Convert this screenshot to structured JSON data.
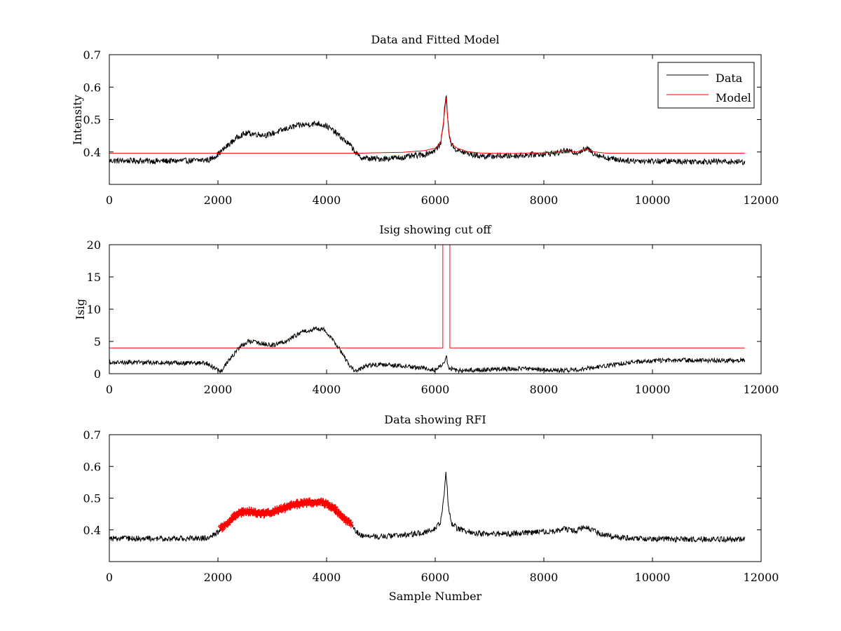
{
  "chart_data": [
    {
      "type": "line",
      "title": "Data and Fitted Model",
      "xlabel": "",
      "ylabel": "Intensity",
      "xlim": [
        0,
        12000
      ],
      "ylim": [
        0.3,
        0.7
      ],
      "xticks": [
        0,
        2000,
        4000,
        6000,
        8000,
        10000,
        12000
      ],
      "xtick_labels": [
        "0",
        "2000",
        "4000",
        "6000",
        "8000",
        "10000",
        "12000"
      ],
      "yticks": [
        0.4,
        0.5,
        0.6,
        0.7
      ],
      "ytick_labels": [
        "0.4",
        "0.5",
        "0.6",
        "0.7"
      ],
      "grid": false,
      "legend": "top-right",
      "series": [
        {
          "name": "Data",
          "color": "#000000",
          "x": [
            0,
            500,
            1000,
            1500,
            1850,
            2000,
            2200,
            2400,
            2550,
            2700,
            2900,
            3100,
            3300,
            3500,
            3700,
            3850,
            4000,
            4150,
            4300,
            4450,
            4600,
            4800,
            5000,
            5400,
            5800,
            6000,
            6100,
            6150,
            6200,
            6250,
            6300,
            6400,
            6600,
            6800,
            7000,
            7400,
            7800,
            8000,
            8300,
            8350,
            8600,
            8800,
            8900,
            9000,
            9200,
            9500,
            10000,
            10500,
            11000,
            11500,
            11700
          ],
          "y": [
            0.373,
            0.373,
            0.372,
            0.373,
            0.376,
            0.393,
            0.423,
            0.451,
            0.458,
            0.455,
            0.452,
            0.462,
            0.474,
            0.482,
            0.486,
            0.488,
            0.48,
            0.462,
            0.44,
            0.418,
            0.384,
            0.379,
            0.379,
            0.383,
            0.392,
            0.405,
            0.425,
            0.49,
            0.58,
            0.46,
            0.422,
            0.405,
            0.395,
            0.388,
            0.387,
            0.388,
            0.392,
            0.394,
            0.398,
            0.404,
            0.398,
            0.41,
            0.398,
            0.39,
            0.38,
            0.374,
            0.372,
            0.371,
            0.371,
            0.37,
            0.369
          ],
          "noise": 0.009
        },
        {
          "name": "Model",
          "color": "#ff0000",
          "x": [
            0,
            4600,
            4800,
            5400,
            5800,
            6000,
            6100,
            6150,
            6200,
            6250,
            6300,
            6400,
            6600,
            6800,
            7000,
            7400,
            7800,
            8000,
            8300,
            8350,
            8600,
            8800,
            8900,
            9100,
            9200,
            11700
          ],
          "y": [
            0.396,
            0.396,
            0.397,
            0.399,
            0.404,
            0.412,
            0.428,
            0.49,
            0.567,
            0.46,
            0.425,
            0.412,
            0.401,
            0.397,
            0.396,
            0.395,
            0.397,
            0.397,
            0.4,
            0.404,
            0.4,
            0.409,
            0.401,
            0.397,
            0.396,
            0.396
          ],
          "noise": 0.0
        }
      ]
    },
    {
      "type": "line",
      "title": "Isig showing cut off",
      "xlabel": "",
      "ylabel": "Isig",
      "xlim": [
        0,
        12000
      ],
      "ylim": [
        0,
        20
      ],
      "xticks": [
        0,
        2000,
        4000,
        6000,
        8000,
        10000,
        12000
      ],
      "xtick_labels": [
        "0",
        "2000",
        "4000",
        "6000",
        "8000",
        "10000",
        "12000"
      ],
      "yticks": [
        0,
        5,
        10,
        15,
        20
      ],
      "ytick_labels": [
        "0",
        "5",
        "10",
        "15",
        "20"
      ],
      "grid": false,
      "series": [
        {
          "color": "#ff0000",
          "x": [
            0,
            6140,
            6140,
            6270,
            6270,
            11700
          ],
          "y": [
            4.0,
            4.0,
            21,
            21,
            4.0,
            4.0
          ],
          "noise": 0.0
        },
        {
          "color": "#000000",
          "x": [
            0,
            1000,
            1800,
            1950,
            2050,
            2200,
            2400,
            2550,
            2800,
            3000,
            3200,
            3400,
            3600,
            3800,
            3950,
            4100,
            4300,
            4450,
            4550,
            4700,
            5000,
            5400,
            5800,
            6000,
            6150,
            6200,
            6250,
            6400,
            6800,
            7200,
            7600,
            8000,
            8400,
            8800,
            9200,
            9600,
            10000,
            10500,
            11000,
            11700
          ],
          "y": [
            1.8,
            1.7,
            1.6,
            0.8,
            0.3,
            2.0,
            4.2,
            5.0,
            4.7,
            4.4,
            4.8,
            5.8,
            6.6,
            7.0,
            6.8,
            5.5,
            3.0,
            1.0,
            0.3,
            1.2,
            1.4,
            1.2,
            0.8,
            0.6,
            1.5,
            2.7,
            0.9,
            0.5,
            0.6,
            0.7,
            0.8,
            0.6,
            0.5,
            0.8,
            1.3,
            1.8,
            2.0,
            2.1,
            2.0,
            2.1
          ],
          "noise": 0.35
        }
      ]
    },
    {
      "type": "line",
      "title": "Data showing RFI",
      "xlabel": "Sample Number",
      "ylabel": "",
      "xlim": [
        0,
        12000
      ],
      "ylim": [
        0.3,
        0.7
      ],
      "xticks": [
        0,
        2000,
        4000,
        6000,
        8000,
        10000,
        12000
      ],
      "xtick_labels": [
        "0",
        "2000",
        "4000",
        "6000",
        "8000",
        "10000",
        "12000"
      ],
      "yticks": [
        0.4,
        0.5,
        0.6,
        0.7
      ],
      "ytick_labels": [
        "0.4",
        "0.5",
        "0.6",
        "0.7"
      ],
      "grid": false,
      "series": [
        {
          "color": "#000000",
          "x": [
            0,
            500,
            1000,
            1500,
            1850,
            2000,
            2200,
            2400,
            2550,
            2700,
            2900,
            3100,
            3300,
            3500,
            3700,
            3850,
            4000,
            4150,
            4300,
            4450,
            4600,
            4800,
            5000,
            5400,
            5800,
            6000,
            6100,
            6150,
            6200,
            6250,
            6300,
            6400,
            6600,
            6800,
            7000,
            7400,
            7800,
            8000,
            8300,
            8350,
            8600,
            8800,
            8900,
            9000,
            9200,
            9500,
            10000,
            10500,
            11000,
            11500,
            11700
          ],
          "y": [
            0.373,
            0.373,
            0.372,
            0.373,
            0.376,
            0.393,
            0.423,
            0.451,
            0.458,
            0.455,
            0.452,
            0.462,
            0.474,
            0.482,
            0.486,
            0.488,
            0.48,
            0.462,
            0.44,
            0.418,
            0.384,
            0.379,
            0.379,
            0.383,
            0.392,
            0.405,
            0.425,
            0.49,
            0.58,
            0.46,
            0.422,
            0.405,
            0.395,
            0.388,
            0.387,
            0.388,
            0.392,
            0.394,
            0.398,
            0.404,
            0.398,
            0.41,
            0.398,
            0.39,
            0.38,
            0.374,
            0.372,
            0.371,
            0.371,
            0.37,
            0.369
          ],
          "noise": 0.009
        },
        {
          "color": "#ff0000",
          "marker": "plus",
          "x": [
            2050,
            2150,
            2250,
            2350,
            2450,
            2550,
            2650,
            2750,
            2850,
            2950,
            3050,
            3150,
            3250,
            3350,
            3450,
            3550,
            3650,
            3750,
            3850,
            3950,
            4050,
            4150,
            4250,
            4350,
            4450
          ],
          "y": [
            0.405,
            0.418,
            0.435,
            0.449,
            0.456,
            0.458,
            0.456,
            0.454,
            0.452,
            0.454,
            0.459,
            0.465,
            0.471,
            0.477,
            0.481,
            0.484,
            0.486,
            0.487,
            0.488,
            0.484,
            0.477,
            0.466,
            0.45,
            0.432,
            0.418
          ],
          "noise": 0.008
        }
      ]
    }
  ]
}
